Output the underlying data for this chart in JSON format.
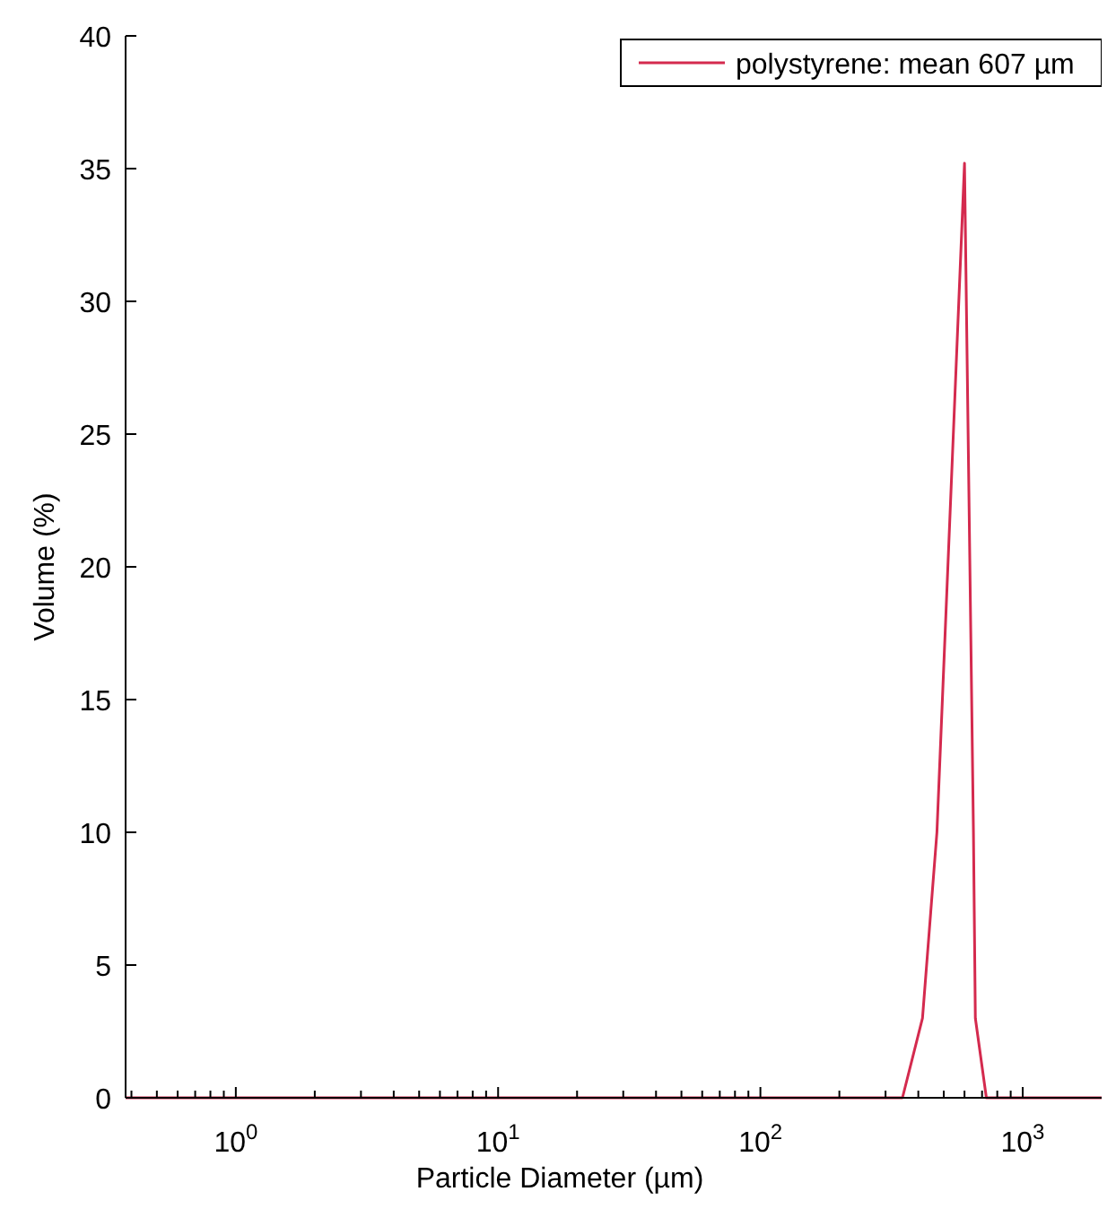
{
  "chart_data": {
    "type": "line",
    "xlabel": "Particle Diameter (µm)",
    "ylabel": "Volume (%)",
    "log": "x",
    "grid": false,
    "legend": "top right",
    "marker": "none",
    "line_style": "solid",
    "xlim": [
      0.38,
      2000
    ],
    "ylim": [
      0,
      40
    ],
    "xticks": [
      {
        "value": 0.4,
        "label": null
      },
      {
        "value": 0.5,
        "label": null
      },
      {
        "value": 0.6,
        "label": null
      },
      {
        "value": 0.7,
        "label": null
      },
      {
        "value": 0.8,
        "label": null
      },
      {
        "value": 0.9,
        "label": null
      },
      {
        "value": 1,
        "label": "10$^{0}$"
      },
      {
        "value": 2,
        "label": null
      },
      {
        "value": 3,
        "label": null
      },
      {
        "value": 4,
        "label": null
      },
      {
        "value": 5,
        "label": null
      },
      {
        "value": 6,
        "label": null
      },
      {
        "value": 7,
        "label": null
      },
      {
        "value": 8,
        "label": null
      },
      {
        "value": 9,
        "label": null
      },
      {
        "value": 10,
        "label": "10$^{1}$"
      },
      {
        "value": 20,
        "label": null
      },
      {
        "value": 30,
        "label": null
      },
      {
        "value": 40,
        "label": null
      },
      {
        "value": 50,
        "label": null
      },
      {
        "value": 60,
        "label": null
      },
      {
        "value": 70,
        "label": null
      },
      {
        "value": 80,
        "label": null
      },
      {
        "value": 90,
        "label": null
      },
      {
        "value": 100,
        "label": "10$^{2}$"
      },
      {
        "value": 200,
        "label": null
      },
      {
        "value": 300,
        "label": null
      },
      {
        "value": 400,
        "label": null
      },
      {
        "value": 500,
        "label": null
      },
      {
        "value": 600,
        "label": null
      },
      {
        "value": 700,
        "label": null
      },
      {
        "value": 800,
        "label": null
      },
      {
        "value": 900,
        "label": null
      },
      {
        "value": 1000,
        "label": "10$^{3}$"
      }
    ],
    "yticks": [
      0,
      5,
      10,
      15,
      20,
      25,
      30,
      35,
      40
    ],
    "series": [
      {
        "name": "polystyrene: mean 607 µm",
        "color": "#d42a4e",
        "x": [
          0.38,
          348,
          415,
          471,
          600,
          649,
          660,
          727,
          2000
        ],
        "values": [
          0,
          0,
          3,
          10,
          35.2,
          10,
          3,
          0,
          0
        ]
      }
    ]
  }
}
